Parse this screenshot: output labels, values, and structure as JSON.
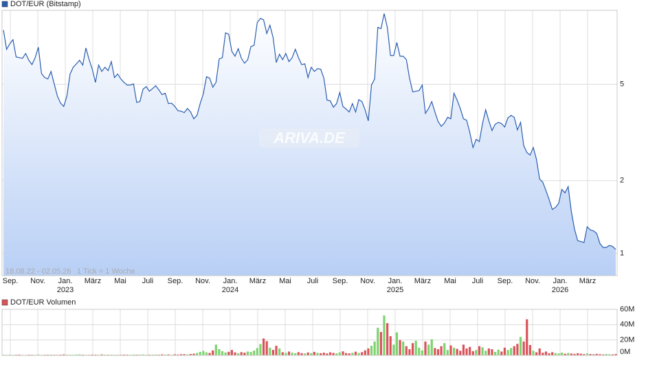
{
  "chart_data": [
    {
      "type": "line",
      "series": [
        {
          "name": "DOT/EUR (Bitstamp)",
          "color": "#2a5db0",
          "values": [
            8.37,
            6.97,
            7.34,
            7.64,
            6.48,
            6.44,
            6.4,
            6.7,
            6.28,
            6.03,
            6.44,
            7.11,
            5.54,
            5.33,
            5.26,
            5.65,
            5.02,
            4.47,
            4.18,
            4.05,
            4.47,
            5.51,
            5.88,
            6.07,
            6.28,
            6.0,
            7.06,
            6.32,
            5.77,
            5.09,
            6.0,
            5.65,
            5.88,
            5.69,
            6.2,
            5.33,
            5.51,
            5.26,
            5.09,
            4.96,
            4.96,
            5.02,
            4.21,
            4.24,
            4.77,
            4.89,
            4.68,
            4.8,
            4.93,
            4.74,
            4.53,
            4.59,
            4.16,
            4.18,
            4.05,
            3.89,
            3.87,
            3.82,
            3.97,
            3.84,
            3.6,
            3.72,
            4.16,
            4.56,
            5.37,
            5.3,
            4.86,
            5.09,
            6.36,
            6.44,
            8.15,
            8.05,
            6.83,
            6.53,
            7.01,
            6.4,
            6.11,
            6.32,
            7.15,
            7.24,
            8.99,
            9.35,
            9.23,
            8.1,
            8.76,
            7.79,
            6.15,
            6.65,
            6.32,
            6.7,
            6.2,
            6.44,
            6.97,
            6.44,
            6.03,
            6.07,
            5.33,
            5.88,
            5.65,
            5.8,
            5.77,
            5.3,
            4.3,
            4.27,
            4.02,
            4.16,
            4.62,
            4.05,
            3.95,
            3.84,
            4.16,
            3.84,
            4.32,
            4.24,
            3.92,
            3.53,
            4.96,
            5.26,
            8.59,
            8.48,
            9.79,
            8.59,
            6.57,
            6.57,
            7.44,
            6.53,
            6.53,
            6.32,
            5.3,
            4.65,
            4.68,
            4.71,
            4.96,
            3.79,
            3.97,
            4.24,
            3.84,
            3.51,
            3.35,
            3.46,
            3.65,
            3.6,
            4.59,
            4.3,
            3.97,
            3.6,
            3.55,
            3.16,
            2.74,
            2.96,
            2.9,
            3.44,
            3.92,
            3.53,
            3.22,
            3.42,
            3.48,
            3.44,
            3.33,
            3.63,
            3.72,
            3.65,
            3.24,
            3.48,
            2.79,
            2.61,
            2.55,
            2.74,
            2.45,
            2.03,
            1.97,
            1.82,
            1.67,
            1.52,
            1.55,
            1.61,
            1.84,
            1.78,
            1.89,
            1.49,
            1.26,
            1.13,
            1.12,
            1.11,
            1.29,
            1.25,
            1.24,
            1.21,
            1.1,
            1.06,
            1.06,
            1.08,
            1.07,
            1.04
          ]
        }
      ],
      "fill_color": "#b8cff5",
      "log_scale": true,
      "ylim": [
        0.81,
        10.1
      ],
      "yticks": [
        1,
        2,
        5
      ],
      "grid": true,
      "x_labels": [
        {
          "month": "Sep."
        },
        {
          "month": "Nov."
        },
        {
          "month": "Jan.",
          "year": "2023"
        },
        {
          "month": "März"
        },
        {
          "month": "Mai"
        },
        {
          "month": "Juli"
        },
        {
          "month": "Sep."
        },
        {
          "month": "Nov."
        },
        {
          "month": "Jan.",
          "year": "2024"
        },
        {
          "month": "März"
        },
        {
          "month": "Mai"
        },
        {
          "month": "Juli"
        },
        {
          "month": "Sep."
        },
        {
          "month": "Nov."
        },
        {
          "month": "Jan.",
          "year": "2025"
        },
        {
          "month": "März"
        },
        {
          "month": "Mai"
        },
        {
          "month": "Juli"
        },
        {
          "month": "Sep."
        },
        {
          "month": "Nov."
        },
        {
          "month": "Jan.",
          "year": "2026"
        },
        {
          "month": "März"
        }
      ],
      "date_range": "18.08.22 - 02.05.26",
      "tick_note": "1 Tick = 1 Woche",
      "watermark": "ARIVA.DE"
    },
    {
      "type": "bar",
      "series": [
        {
          "name": "DOT/EUR Volumen",
          "color": "#d9545a",
          "values": [
            0.8,
            0.6,
            0.9,
            0.7,
            0.8,
            1.0,
            0.6,
            0.7,
            0.9,
            0.8,
            0.7,
            1.1,
            0.6,
            0.8,
            0.9,
            1.0,
            0.8,
            0.7,
            0.9,
            1.2,
            1.0,
            0.9,
            0.8,
            1.1,
            1.3,
            0.9,
            0.8,
            0.7,
            1.0,
            0.9,
            0.8,
            1.2,
            0.9,
            0.8,
            1.0,
            0.7,
            0.9,
            0.8,
            1.0,
            0.9,
            0.8,
            1.1,
            0.9,
            1.0,
            1.2,
            0.8,
            0.9,
            1.0,
            1.1,
            0.9,
            1.3,
            1.0,
            1.2,
            0.9,
            1.4,
            1.1,
            1.5,
            1.6,
            1.3,
            1.8,
            2.2,
            3.1,
            4.5,
            5.8,
            4.0,
            3.2,
            6.5,
            14.0,
            8.2,
            5.5,
            3.8,
            4.6,
            7.0,
            3.9,
            2.8,
            4.2,
            3.5,
            5.0,
            4.4,
            6.2,
            9.5,
            14.8,
            22.0,
            18.5,
            10.0,
            7.2,
            12.5,
            9.0,
            4.1,
            3.2,
            5.0,
            3.6,
            2.8,
            4.2,
            3.0,
            2.5,
            3.8,
            2.9,
            4.5,
            3.3,
            2.8,
            3.5,
            2.5,
            4.0,
            3.2,
            2.7,
            3.9,
            5.2,
            3.0,
            2.6,
            3.4,
            4.8,
            3.1,
            4.2,
            6.5,
            9.0,
            12.5,
            18.0,
            36.0,
            30.5,
            52.0,
            42.0,
            25.0,
            14.0,
            30.0,
            20.0,
            18.0,
            12.0,
            8.0,
            16.0,
            19.0,
            10.0,
            6.5,
            18.0,
            14.0,
            21.0,
            9.5,
            8.0,
            12.0,
            16.0,
            7.0,
            13.0,
            10.0,
            8.5,
            6.0,
            14.0,
            9.0,
            11.0,
            5.5,
            7.0,
            12.0,
            10.5,
            6.0,
            9.0,
            8.0,
            4.5,
            7.5,
            5.0,
            10.0,
            7.0,
            9.5,
            12.0,
            15.0,
            24.0,
            18.0,
            47.0,
            13.5,
            6.0,
            4.0,
            9.0,
            3.5,
            5.0,
            2.8,
            4.2,
            3.0,
            2.5,
            3.6,
            2.2,
            3.1,
            2.4,
            1.9,
            2.8,
            2.2,
            1.6,
            2.5,
            1.8,
            1.4,
            2.0,
            1.6,
            1.2,
            1.8,
            1.5,
            1.3,
            1.7
          ]
        }
      ],
      "up_color": "#7ed36f",
      "down_color": "#d9545a",
      "ylim": [
        0,
        60
      ],
      "yticks": [
        {
          "value": 0,
          "label": "0M"
        },
        {
          "value": 20,
          "label": "20M"
        },
        {
          "value": 40,
          "label": "40M"
        },
        {
          "value": 60,
          "label": "60M"
        }
      ],
      "grid": true
    }
  ]
}
